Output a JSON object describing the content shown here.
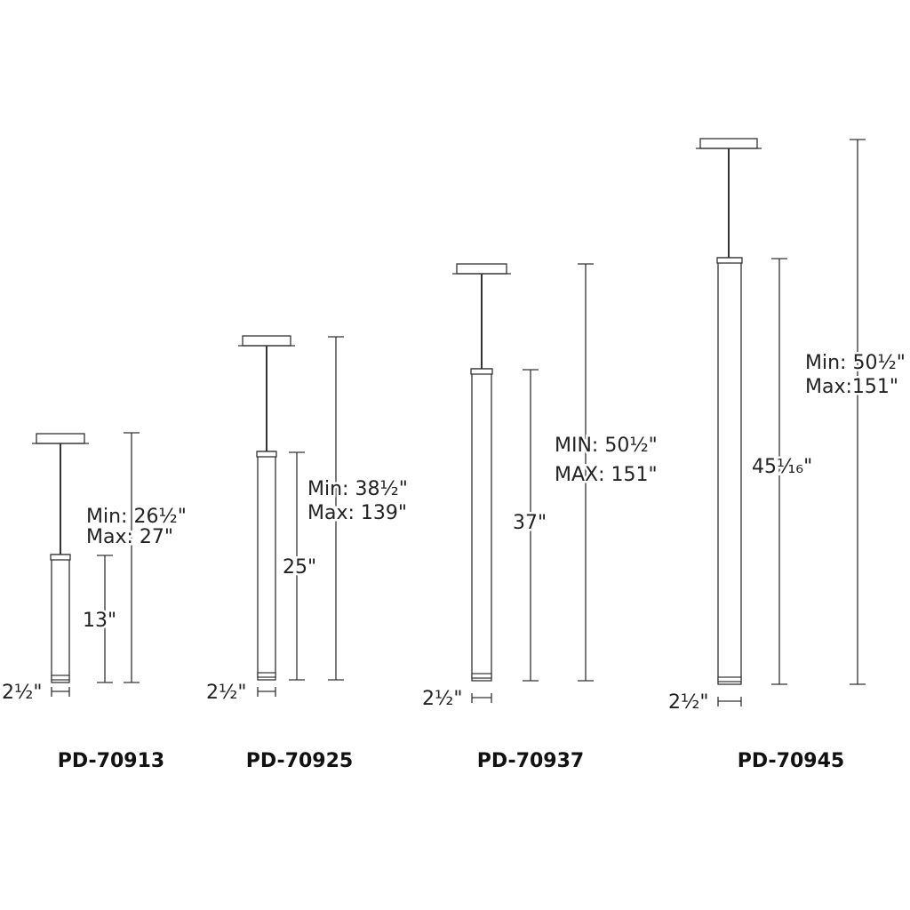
{
  "fixtures": [
    {
      "model": "PD-70913",
      "min_label": "Min: 26½\"",
      "max_label": "Max: 27\"",
      "tube_height": "13\"",
      "width": "2½\""
    },
    {
      "model": "PD-70925",
      "min_label": "Min: 38½\"",
      "max_label": "Max: 139\"",
      "tube_height": "25\"",
      "width": "2½\""
    },
    {
      "model": "PD-70937",
      "min_label": "MIN: 50½\"",
      "max_label": "MAX: 151\"",
      "tube_height": "37\"",
      "width": "2½\""
    },
    {
      "model": "PD-70945",
      "min_label": "Min: 50½\"",
      "max_label": "Max:151\"",
      "tube_height": "45¹⁄₁₆\"",
      "width": "2½\""
    }
  ],
  "colors": {
    "line": "#333333",
    "text": "#222222"
  }
}
